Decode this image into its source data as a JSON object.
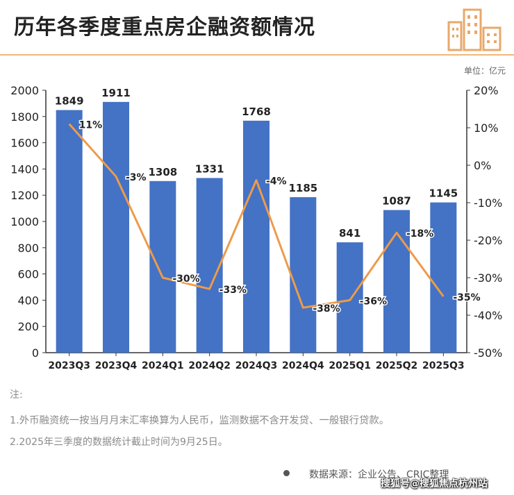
{
  "title": "历年各季度重点房企融资额情况",
  "unit_label": "单位：亿元",
  "notes": {
    "heading": "注:",
    "line1": "1.外币融资统一按当月月末汇率换算为人民币，监测数据不含开发贷、一般银行贷款。",
    "line2": "2.2025年三季度的数据统计截止时间为9月25日。"
  },
  "source": "数据来源：企业公告、CRIC整理",
  "watermark": "搜狐号@搜狐焦点杭州站",
  "colors": {
    "bar": "#4472c4",
    "line": "#ed9b4a",
    "title": "#222222",
    "logo": "#e8a86a"
  },
  "icons": {
    "logo": "buildings-icon",
    "source_dot": "bullet-icon"
  },
  "chart_data": {
    "type": "bar",
    "categories": [
      "2023Q3",
      "2023Q4",
      "2024Q1",
      "2024Q2",
      "2024Q3",
      "2024Q4",
      "2025Q1",
      "2025Q2",
      "2025Q3"
    ],
    "series": [
      {
        "type": "bar",
        "values": [
          1849,
          1911,
          1308,
          1331,
          1768,
          1185,
          841,
          1087,
          1145
        ],
        "axis": "left"
      },
      {
        "type": "line",
        "values": [
          11,
          -3,
          -30,
          -33,
          -4,
          -38,
          -36,
          -18,
          -35
        ],
        "labels": [
          "11%",
          "-3%",
          "-30%",
          "-33%",
          "-4%",
          "-38%",
          "-36%",
          "-18%",
          "-35%"
        ],
        "axis": "right"
      }
    ],
    "ylim": [
      0,
      2000
    ],
    "yticks": [
      "0",
      "200",
      "400",
      "600",
      "800",
      "1000",
      "1200",
      "1400",
      "1600",
      "1800",
      "2000"
    ],
    "y2lim": [
      -50,
      20
    ],
    "y2ticks": [
      "-50%",
      "-40%",
      "-30%",
      "-20%",
      "-10%",
      "0%",
      "10%",
      "20%"
    ],
    "grid": false
  }
}
